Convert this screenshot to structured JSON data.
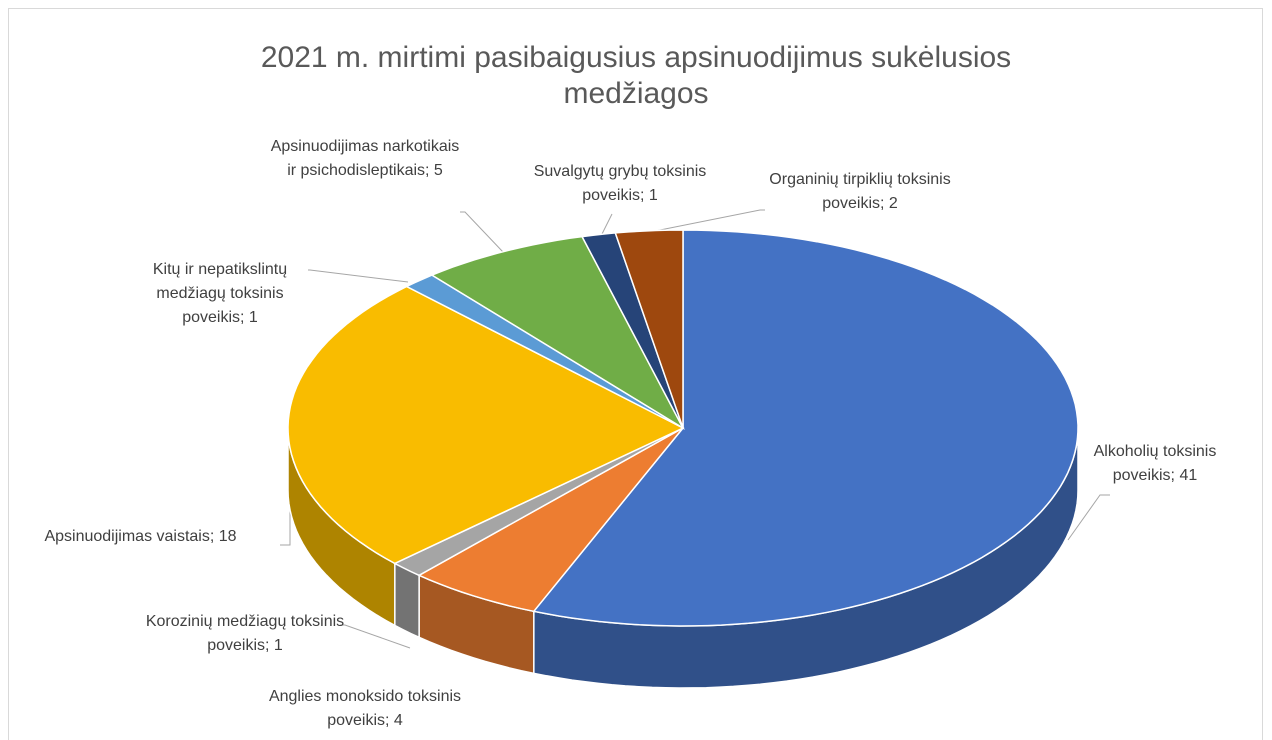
{
  "chart_data": {
    "type": "pie",
    "title": "2021 m. mirtimi pasibaigusius apsinuodijimus sukėlusios medžiagos",
    "values": [
      41,
      4,
      1,
      18,
      1,
      5,
      1,
      2
    ],
    "value_labels": [
      "Alkoholių toksinis poveikis; 41",
      "Anglies monoksido toksinis poveikis; 4",
      "Korozinių medžiagų toksinis poveikis; 1",
      "Apsinuodijimas vaistais; 18",
      "Kitų ir nepatikslintų medžiagų toksinis poveikis; 1",
      "Apsinuodijimas narkotikais ir psichodisleptikais; 5",
      "Suvalgytų grybų toksinis poveikis; 1",
      "Organinių tirpiklių toksinis poveikis; 2"
    ],
    "colors": [
      "#4472c4",
      "#ed7d31",
      "#a5a5a5",
      "#f9bc00",
      "#5b9bd5",
      "#70ad47",
      "#264478",
      "#9e480e"
    ]
  }
}
